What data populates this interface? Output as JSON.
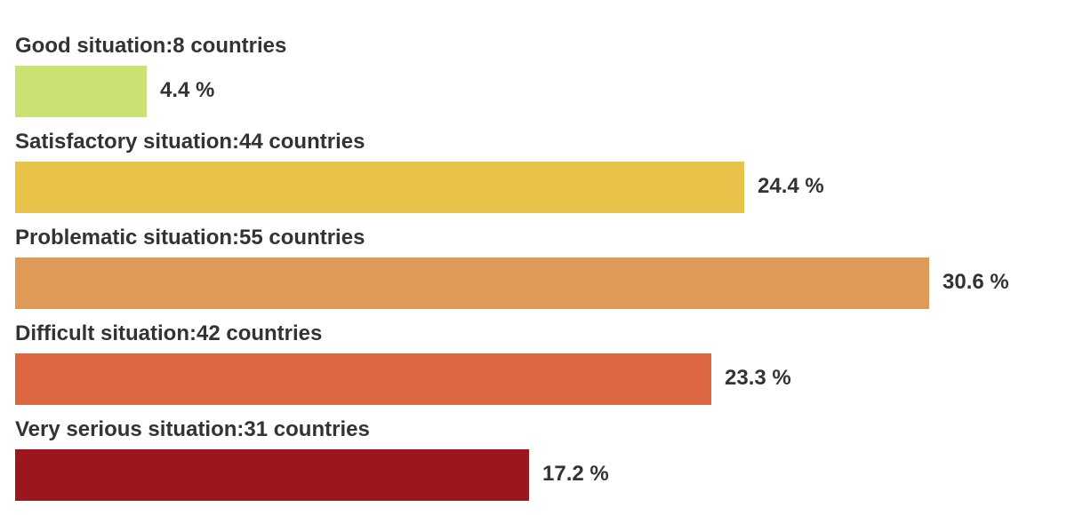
{
  "chart_data": {
    "type": "bar",
    "orientation": "horizontal",
    "categories": [
      "Good situation",
      "Satisfactory situation",
      "Problematic situation",
      "Difficult situation",
      "Very serious situation"
    ],
    "labels": [
      "Good situation:8 countries",
      "Satisfactory situation:44 countries",
      "Problematic situation:55 countries",
      "Difficult situation:42 countries",
      "Very serious situation:31 countries"
    ],
    "counts": [
      8,
      44,
      55,
      42,
      31
    ],
    "values": [
      4.4,
      24.4,
      30.6,
      23.3,
      17.2
    ],
    "value_labels": [
      "4.4 %",
      "24.4 %",
      "30.6 %",
      "23.3 %",
      "17.2 %"
    ],
    "unit": "%",
    "colors": [
      "#c9e272",
      "#e9c349",
      "#e09a58",
      "#dc6742",
      "#9b171d"
    ],
    "grid": false,
    "legend": "none"
  }
}
